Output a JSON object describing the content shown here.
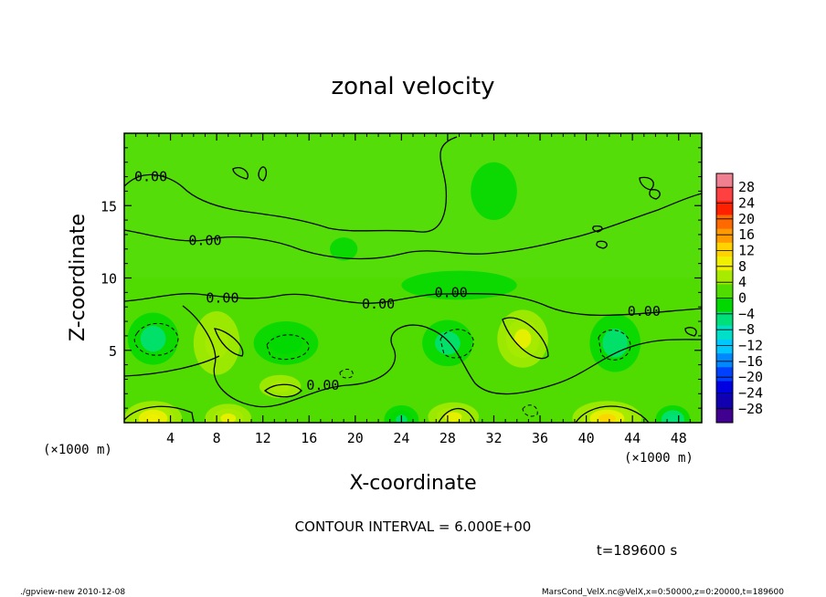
{
  "chart_data": {
    "type": "heatmap",
    "title": "zonal velocity",
    "xlabel": "X-coordinate",
    "ylabel": "Z-coordinate",
    "x_unit_label": "(×1000 m)",
    "y_unit_label": "(×1000 m)",
    "xlim": [
      0,
      50
    ],
    "ylim": [
      0,
      20
    ],
    "x_ticks": [
      4,
      8,
      12,
      16,
      20,
      24,
      28,
      32,
      36,
      40,
      44,
      48
    ],
    "y_ticks": [
      5,
      10,
      15
    ],
    "colorbar": {
      "labels": [
        "28",
        "24",
        "20",
        "16",
        "12",
        "8",
        "4",
        "0",
        "−4",
        "−8",
        "−12",
        "−16",
        "−20",
        "−24",
        "−28"
      ],
      "colors": [
        "#f07f90",
        "#ff4040",
        "#ff2000",
        "#ff6a00",
        "#ff9a00",
        "#ffd200",
        "#f0f000",
        "#a8ea00",
        "#50dc00",
        "#00d800",
        "#00e07a",
        "#00e0c8",
        "#00c8ff",
        "#0088ff",
        "#0040ff",
        "#0000e0",
        "#1000b0",
        "#400090"
      ]
    },
    "contour_labels": [
      {
        "text": "0.00",
        "x": 2.3,
        "z": 17.0
      },
      {
        "text": "0.00",
        "x": 7.0,
        "z": 12.6
      },
      {
        "text": "0.00",
        "x": 8.5,
        "z": 8.6
      },
      {
        "text": "0.00",
        "x": 22.0,
        "z": 8.2
      },
      {
        "text": "0.00",
        "x": 28.3,
        "z": 9.0
      },
      {
        "text": "0.00",
        "x": 45.0,
        "z": 7.7
      },
      {
        "text": "0.00",
        "x": 17.2,
        "z": 2.6
      }
    ],
    "field_features": [
      {
        "sign": "negative",
        "x": 2.5,
        "z": 5.8,
        "rx": 2.2,
        "rz": 1.8,
        "amp": -6
      },
      {
        "sign": "negative",
        "x": 14.0,
        "z": 5.5,
        "rx": 2.8,
        "rz": 1.5,
        "amp": -5
      },
      {
        "sign": "negative",
        "x": 28.0,
        "z": 5.5,
        "rx": 2.2,
        "rz": 1.6,
        "amp": -6
      },
      {
        "sign": "negative",
        "x": 42.5,
        "z": 5.5,
        "rx": 2.2,
        "rz": 2.0,
        "amp": -6
      },
      {
        "sign": "positive",
        "x": 8.0,
        "z": 5.5,
        "rx": 2.0,
        "rz": 2.2,
        "amp": 5
      },
      {
        "sign": "positive",
        "x": 34.5,
        "z": 5.8,
        "rx": 2.2,
        "rz": 2.0,
        "amp": 7
      },
      {
        "sign": "positive",
        "x": 13.5,
        "z": 2.5,
        "rx": 1.8,
        "rz": 0.8,
        "amp": 6
      },
      {
        "sign": "positive",
        "x": 2.5,
        "z": 0.3,
        "rx": 2.5,
        "rz": 1.2,
        "amp": 10
      },
      {
        "sign": "positive",
        "x": 9.0,
        "z": 0.3,
        "rx": 2.0,
        "rz": 1.0,
        "amp": 7
      },
      {
        "sign": "positive",
        "x": 28.5,
        "z": 0.4,
        "rx": 2.2,
        "rz": 1.0,
        "amp": 8
      },
      {
        "sign": "positive",
        "x": 41.8,
        "z": 0.3,
        "rx": 3.0,
        "rz": 1.2,
        "amp": 11
      },
      {
        "sign": "negative",
        "x": 24.0,
        "z": 0.2,
        "rx": 1.5,
        "rz": 1.0,
        "amp": -8
      },
      {
        "sign": "negative",
        "x": 47.5,
        "z": 0.2,
        "rx": 1.5,
        "rz": 1.0,
        "amp": -9
      },
      {
        "sign": "negative",
        "x": 29.0,
        "z": 9.5,
        "rx": 5.0,
        "rz": 1.0,
        "amp": -3
      },
      {
        "sign": "negative",
        "x": 19.0,
        "z": 12.0,
        "rx": 1.2,
        "rz": 0.8,
        "amp": -2
      },
      {
        "sign": "negative",
        "x": 32.0,
        "z": 16.0,
        "rx": 2.0,
        "rz": 2.0,
        "amp": -2
      }
    ]
  },
  "contour_interval": "CONTOUR INTERVAL = 6.000E+00",
  "time_label": "t=189600 s",
  "footer": {
    "left": "./gpview-new  2010-12-08",
    "right": "MarsCond_VelX.nc@VelX,x=0:50000,z=0:20000,t=189600"
  },
  "colors": {
    "background_green": "#50dc00",
    "contour": "#000000"
  }
}
